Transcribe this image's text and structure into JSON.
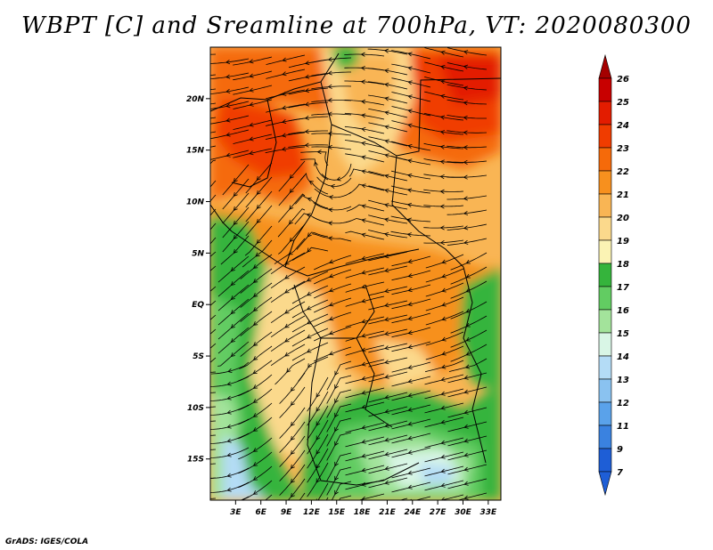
{
  "title": "WBPT [C] and Sreamline at 700hPa, VT: 2020080300",
  "credit": "GrADS: IGES/COLA",
  "map": {
    "lat_range": [
      -19,
      25
    ],
    "lon_range": [
      0,
      34.5
    ],
    "lat_ticks": [
      {
        "value": 20,
        "label": "20N"
      },
      {
        "value": 15,
        "label": "15N"
      },
      {
        "value": 10,
        "label": "10N"
      },
      {
        "value": 5,
        "label": "5N"
      },
      {
        "value": 0,
        "label": "EQ"
      },
      {
        "value": -5,
        "label": "5S"
      },
      {
        "value": -10,
        "label": "10S"
      },
      {
        "value": -15,
        "label": "15S"
      }
    ],
    "lon_ticks": [
      {
        "value": 3,
        "label": "3E"
      },
      {
        "value": 6,
        "label": "6E"
      },
      {
        "value": 9,
        "label": "9E"
      },
      {
        "value": 12,
        "label": "12E"
      },
      {
        "value": 15,
        "label": "15E"
      },
      {
        "value": 18,
        "label": "18E"
      },
      {
        "value": 21,
        "label": "21E"
      },
      {
        "value": 24,
        "label": "24E"
      },
      {
        "value": 27,
        "label": "27E"
      },
      {
        "value": 30,
        "label": "30E"
      },
      {
        "value": 33,
        "label": "33E"
      }
    ]
  },
  "colorbar": {
    "levels": [
      {
        "label": "26",
        "color": "#a50000"
      },
      {
        "label": "25",
        "color": "#c80000"
      },
      {
        "label": "24",
        "color": "#e31c00"
      },
      {
        "label": "23",
        "color": "#f03c00"
      },
      {
        "label": "22",
        "color": "#f56a0a"
      },
      {
        "label": "21",
        "color": "#f7901e"
      },
      {
        "label": "20",
        "color": "#f9b554"
      },
      {
        "label": "19",
        "color": "#fbd98c"
      },
      {
        "label": "18",
        "color": "#fbf3b4"
      },
      {
        "label": "17",
        "color": "#35b43c"
      },
      {
        "label": "16",
        "color": "#62cc62"
      },
      {
        "label": "15",
        "color": "#a3e39b"
      },
      {
        "label": "14",
        "color": "#d9f6e6"
      },
      {
        "label": "13",
        "color": "#b4dcf6"
      },
      {
        "label": "12",
        "color": "#8ac2f0"
      },
      {
        "label": "11",
        "color": "#5aa2ea"
      },
      {
        "label": "9",
        "color": "#3a82e0"
      },
      {
        "label": "7",
        "color": "#1e5ed6"
      }
    ],
    "bottom_color": "#1e5ed6"
  }
}
